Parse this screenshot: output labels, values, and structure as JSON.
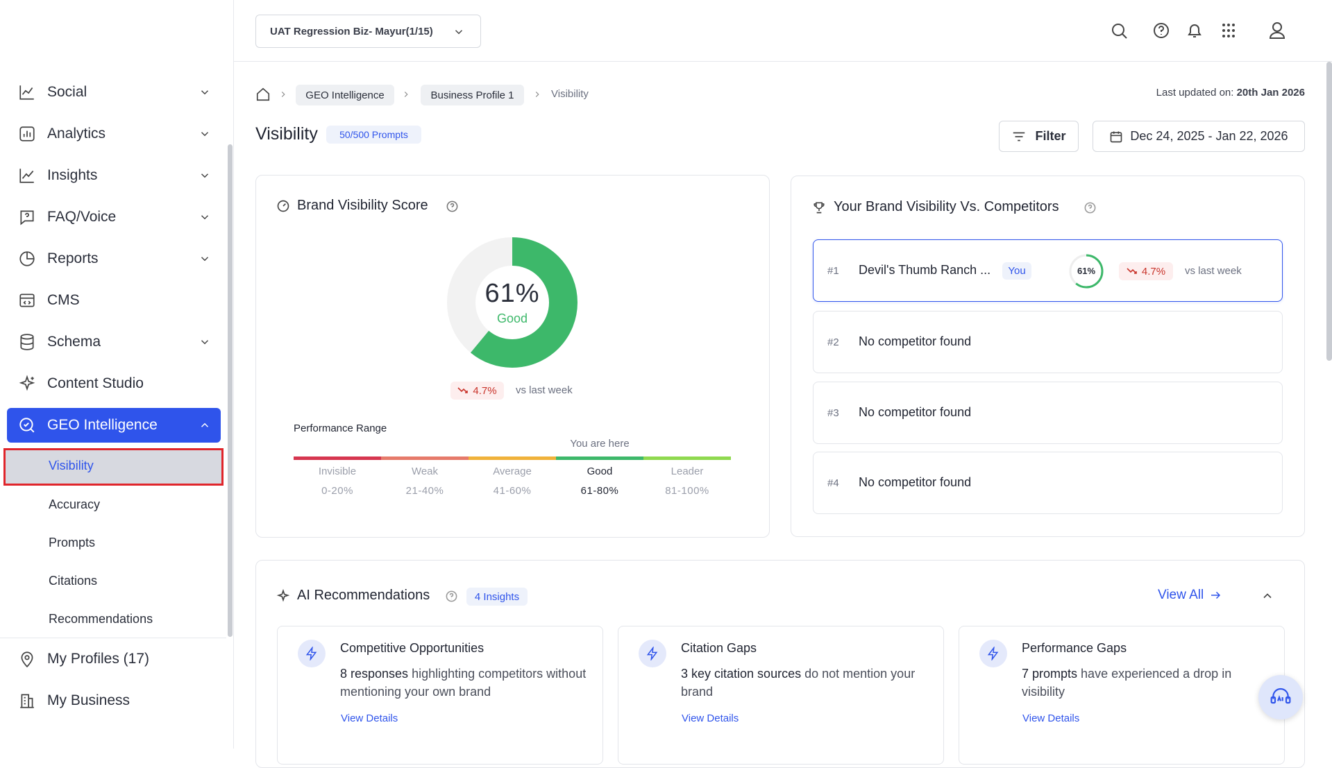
{
  "sidebar": {
    "menu": [
      "Social",
      "Analytics",
      "Insights",
      "FAQ/Voice",
      "Reports",
      "CMS",
      "Schema",
      "Content Studio",
      "GEO Intelligence"
    ],
    "submenu": [
      "Visibility",
      "Accuracy",
      "Prompts",
      "Citations",
      "Recommendations"
    ],
    "bottom": [
      "My Profiles (17)",
      "My Business"
    ]
  },
  "header": {
    "workspace": "UAT Regression Biz- Mayur(1/15)"
  },
  "breadcrumb": [
    "GEO Intelligence",
    "Business Profile 1",
    "Visibility"
  ],
  "last_updated_label": "Last updated on:",
  "last_updated": "20th Jan 2026",
  "page_title": "Visibility",
  "prompts_badge": "50/500 Prompts",
  "filter": "Filter",
  "date_range": "Dec 24, 2025 - Jan 22, 2026",
  "score_card": {
    "title": "Brand Visibility Score",
    "score": 61,
    "score_label": "61%",
    "rating": "Good",
    "change": "4.7%",
    "compare": "vs last week",
    "range_title": "Performance Range",
    "marker": "You are here",
    "ranges": [
      {
        "name": "Invisible",
        "range": "0-20%",
        "color": "#d6364f"
      },
      {
        "name": "Weak",
        "range": "21-40%",
        "color": "#e67a6a"
      },
      {
        "name": "Average",
        "range": "41-60%",
        "color": "#f0b23a"
      },
      {
        "name": "Good",
        "range": "61-80%",
        "color": "#3db86a"
      },
      {
        "name": "Leader",
        "range": "81-100%",
        "color": "#8fd94f"
      }
    ]
  },
  "competitors": {
    "title": "Your Brand Visibility Vs. Competitors",
    "rows": [
      {
        "rank": "#1",
        "name": "Devil's Thumb Ranch ...",
        "tag": "You",
        "score": 61,
        "score_label": "61%",
        "change": "4.7%",
        "compare": "vs last week"
      },
      {
        "rank": "#2",
        "name": "No competitor found"
      },
      {
        "rank": "#3",
        "name": "No competitor found"
      },
      {
        "rank": "#4",
        "name": "No competitor found"
      }
    ]
  },
  "recommendations": {
    "title": "AI Recommendations",
    "badge": "4 Insights",
    "view_all": "View All",
    "cards": [
      {
        "title": "Competitive Opportunities",
        "desc_bold": "8 responses",
        "desc": " highlighting competitors without mentioning your own brand",
        "link": "View Details"
      },
      {
        "title": "Citation Gaps",
        "desc_bold": "3 key citation sources",
        "desc": " do not mention your brand",
        "link": "View Details"
      },
      {
        "title": "Performance Gaps",
        "desc_bold": "7 prompts",
        "desc": " have experienced a drop in visibility",
        "link": "View Details"
      }
    ]
  }
}
